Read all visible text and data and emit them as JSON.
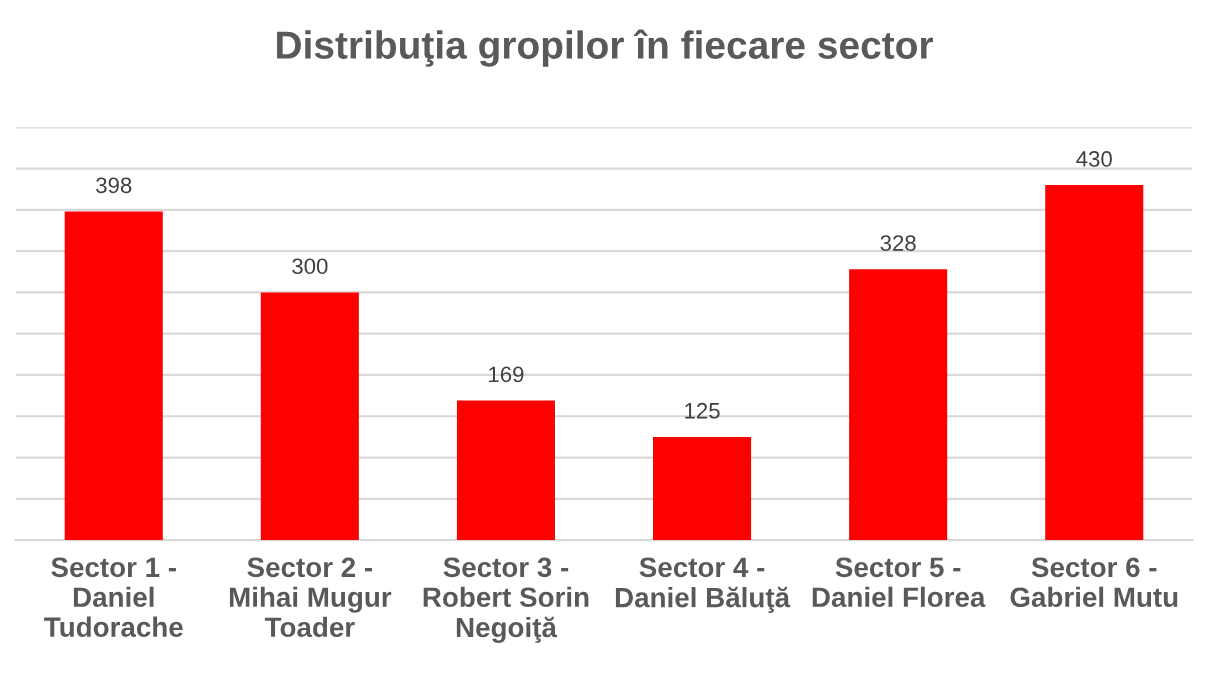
{
  "chart_data": {
    "type": "bar",
    "title": "Distribuţia gropilor în fiecare sector",
    "categories": [
      "Sector 1 -\nDaniel\nTudorache",
      "Sector 2 -\nMihai Mugur\nToader",
      "Sector 3 -\nRobert Sorin\nNegoiţă",
      "Sector 4 -\nDaniel Băluţă",
      "Sector 5 -\nDaniel Florea",
      "Sector 6 -\nGabriel Mutu"
    ],
    "values": [
      398,
      300,
      169,
      125,
      328,
      430
    ],
    "color": "#ff0000",
    "data_labels": true,
    "ylim": [
      0,
      500
    ],
    "yticks": [
      {
        "value": 0,
        "label": null
      },
      {
        "value": 50,
        "label": null
      },
      {
        "value": 100,
        "label": null
      },
      {
        "value": 150,
        "label": null
      },
      {
        "value": 200,
        "label": null
      },
      {
        "value": 250,
        "label": null
      },
      {
        "value": 300,
        "label": null
      },
      {
        "value": 350,
        "label": null
      },
      {
        "value": 400,
        "label": null
      },
      {
        "value": 450,
        "label": null
      },
      {
        "value": 500,
        "label": null
      }
    ],
    "grid": "y",
    "tick_labels": "x"
  }
}
